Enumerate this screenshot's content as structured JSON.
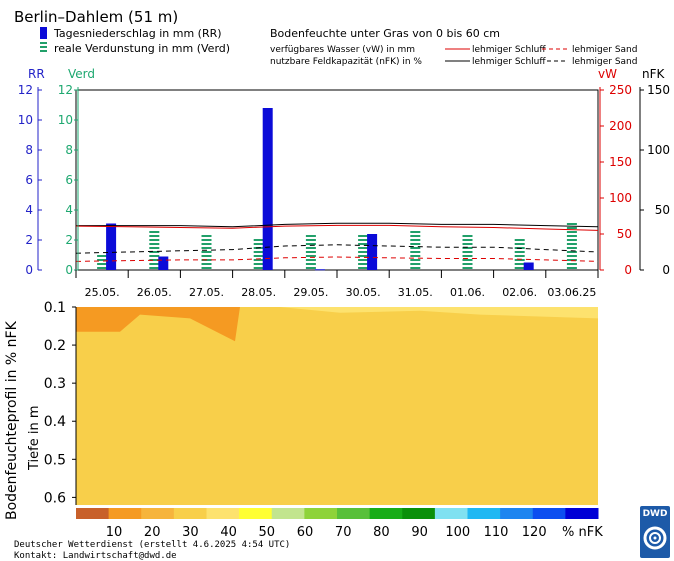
{
  "header": {
    "station": "Berlin–Dahlem (51 m)",
    "legend_rr": "Tagesniederschlag in mm (RR)",
    "legend_verd": "reale Verdunstung in mm (Verd)",
    "title": "Bodenfeuchte unter Gras von 0 bis 60 cm",
    "vw_label": "verfügbares Wasser (vW) in mm",
    "nfk_label": "nutzbare Feldkapazität (nFK) in %",
    "ls_red": "lehmiger Schluff",
    "sand_red": "lehmiger Sand",
    "ls_black": "lehmiger Schluff",
    "sand_black": "lehmiger Sand"
  },
  "colors": {
    "rr": "#0b0bd8",
    "verd": "#22a06a",
    "vw": "#dd0000",
    "nfk": "#000000",
    "rr_axis": "#2323c8",
    "verd_axis": "#1ea870"
  },
  "chart_data": {
    "type": "bar",
    "dates": [
      "25.05.",
      "26.05.",
      "27.05.",
      "28.05.",
      "29.05.",
      "30.05.",
      "31.05.",
      "01.06.",
      "02.06.",
      "03.06.25"
    ],
    "axes": {
      "rr_label": "RR",
      "verd_label": "Verd",
      "vw_label": "vW",
      "nfk_label": "nFK",
      "rr_ticks": [
        0,
        2,
        4,
        6,
        8,
        10,
        12
      ],
      "verd_ticks": [
        0,
        2,
        4,
        6,
        8,
        10,
        12
      ],
      "vw_ticks": [
        0,
        50,
        100,
        150,
        200,
        250
      ],
      "nfk_ticks": [
        0,
        50,
        100,
        150
      ],
      "rr_range": [
        0,
        12
      ],
      "vw_range": [
        0,
        250
      ],
      "nfk_range": [
        0,
        150
      ]
    },
    "series": [
      {
        "name": "Tagesniederschlag in mm (RR)",
        "values": [
          3.1,
          0.9,
          0,
          10.8,
          0.05,
          2.4,
          0,
          0,
          0.5,
          0
        ]
      },
      {
        "name": "reale Verdunstung in mm (Verd)",
        "values": [
          1.0,
          2.7,
          2.3,
          2.0,
          2.3,
          2.5,
          2.7,
          2.5,
          2.1,
          3.2
        ]
      }
    ],
    "vw_lehmiger_schluff": [
      61,
      60,
      59,
      58,
      61,
      62,
      62,
      60,
      59,
      57,
      55
    ],
    "vw_lehmiger_sand": [
      12,
      13,
      14,
      14,
      17,
      18,
      17,
      16,
      16,
      14,
      12
    ],
    "nfk_lehmiger_schluff": [
      37,
      37,
      37,
      36,
      38,
      39,
      39,
      38,
      38,
      37,
      36
    ],
    "nfk_lehmiger_sand": [
      14,
      15,
      16,
      17,
      20,
      21,
      20,
      19,
      19,
      17,
      15
    ],
    "profile": {
      "y_label": "Bodenfeuchteprofil in % nFK",
      "y_label2": "Tiefe in m",
      "depth_ticks": [
        "0.1",
        "0.2",
        "0.3",
        "0.4",
        "0.5",
        "0.6"
      ],
      "depth_range": [
        0.1,
        0.62
      ]
    },
    "colorbar": {
      "labels": [
        "10",
        "20",
        "30",
        "40",
        "50",
        "60",
        "70",
        "80",
        "90",
        "100",
        "110",
        "120"
      ],
      "unit": "% nFK",
      "colors": [
        "#c8602a",
        "#f59a22",
        "#f6b43c",
        "#f8cf4a",
        "#fde26e",
        "#ffff33",
        "#c2e58e",
        "#8ed33a",
        "#58c03a",
        "#18ac18",
        "#0a900a",
        "#7fe1f1",
        "#1fb8f3",
        "#1e85f0",
        "#0c4ef0",
        "#0000d6"
      ]
    }
  },
  "footer": {
    "line1": "Deutscher Wetterdienst (erstellt 4.6.2025 4:54 UTC)",
    "line2": "Kontakt: Landwirtschaft@dwd.de"
  },
  "logo": {
    "text": "DWD"
  }
}
